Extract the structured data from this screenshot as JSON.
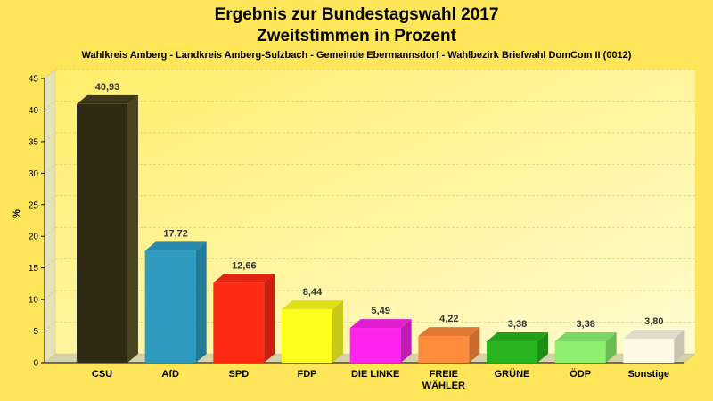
{
  "chart_data": {
    "type": "bar",
    "title": "Ergebnis zur Bundestagswahl 2017",
    "subtitle": "Zweitstimmen in Prozent",
    "caption": "Wahlkreis Amberg - Landkreis Amberg-Sulzbach - Gemeinde Ebermannsdorf - Wahlbezirk Briefwahl DomCom II (0012)",
    "xlabel": "",
    "ylabel": "%",
    "ylim": [
      0,
      45
    ],
    "yticks": [
      0,
      5,
      10,
      15,
      20,
      25,
      30,
      35,
      40,
      45
    ],
    "grid": true,
    "categories": [
      "CSU",
      "AfD",
      "SPD",
      "FDP",
      "DIE LINKE",
      "FREIE WÄHLER",
      "GRÜNE",
      "ÖDP",
      "Sonstige"
    ],
    "category_lines": [
      [
        "CSU"
      ],
      [
        "AfD"
      ],
      [
        "SPD"
      ],
      [
        "FDP"
      ],
      [
        "DIE LINKE"
      ],
      [
        "FREIE",
        "WÄHLER"
      ],
      [
        "GRÜNE"
      ],
      [
        "ÖDP"
      ],
      [
        "Sonstige"
      ]
    ],
    "values": [
      40.93,
      17.72,
      12.66,
      8.44,
      5.49,
      4.22,
      3.38,
      3.38,
      3.8
    ],
    "value_labels": [
      "40,93",
      "17,72",
      "12,66",
      "8,44",
      "5,49",
      "4,22",
      "3,38",
      "3,38",
      "3,80"
    ],
    "colors": [
      "#2e2a14",
      "#2e9bbf",
      "#ff2a14",
      "#ffff1f",
      "#ff24ee",
      "#ff8c3c",
      "#28b41e",
      "#8cf06e",
      "#fffae6"
    ],
    "side_colors": [
      "#4a4420",
      "#237a96",
      "#c8200f",
      "#c8c818",
      "#c01cb4",
      "#c86c2e",
      "#1f8c17",
      "#6cbc55",
      "#c8c3b2"
    ],
    "top_colors": [
      "#3e381a",
      "#2889aa",
      "#e0240f",
      "#e0e01a",
      "#e020d0",
      "#e07a34",
      "#22a01a",
      "#7ad862",
      "#e0dccc"
    ]
  },
  "colors": {
    "background": "#ffe55a",
    "plot_background": "#fff6a0",
    "grid": "#d8c878",
    "axis": "#000000"
  }
}
